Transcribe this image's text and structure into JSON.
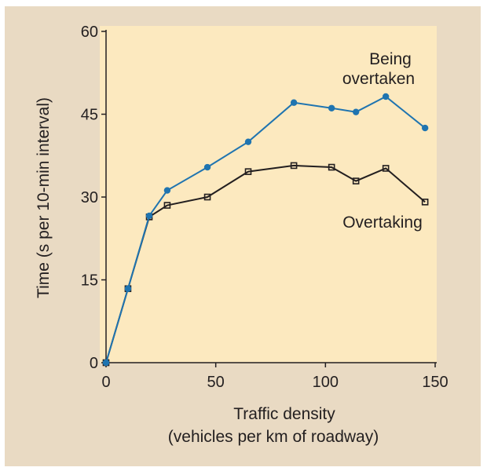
{
  "chart_data": {
    "type": "line",
    "xlabel": "Traffic density",
    "xlabel_line2": "(vehicles per km of roadway)",
    "ylabel": "Time (s per 10-min interval)",
    "xlim": [
      0,
      150
    ],
    "ylim": [
      0,
      60
    ],
    "xticks": [
      "0",
      "50",
      "100",
      "150"
    ],
    "yticks": [
      "0",
      "15",
      "30",
      "45",
      "60"
    ],
    "grid": false,
    "plot_background": "#fce9bf",
    "series": [
      {
        "name": "Being overtaken",
        "label_lines": [
          "Being",
          "overtaken"
        ],
        "color": "#1f74b0",
        "marker": "filled-circle",
        "x": [
          0,
          10,
          19.7,
          27.9,
          46.2,
          64.8,
          85.6,
          102.8,
          113.9,
          127.5,
          145.4
        ],
        "y": [
          0,
          13.4,
          26.6,
          31.2,
          35.4,
          40,
          47.1,
          46.1,
          45.4,
          48.2,
          42.5
        ]
      },
      {
        "name": "Overtaking",
        "label_lines": [
          "Overtaking"
        ],
        "color": "#231f20",
        "marker": "open-square",
        "x": [
          0,
          10,
          19.7,
          27.9,
          46.2,
          64.8,
          85.6,
          102.8,
          113.9,
          127.5,
          145.4
        ],
        "y": [
          0,
          13.4,
          26.4,
          28.5,
          30,
          34.6,
          35.7,
          35.4,
          32.9,
          35.2,
          29.1
        ]
      }
    ]
  }
}
